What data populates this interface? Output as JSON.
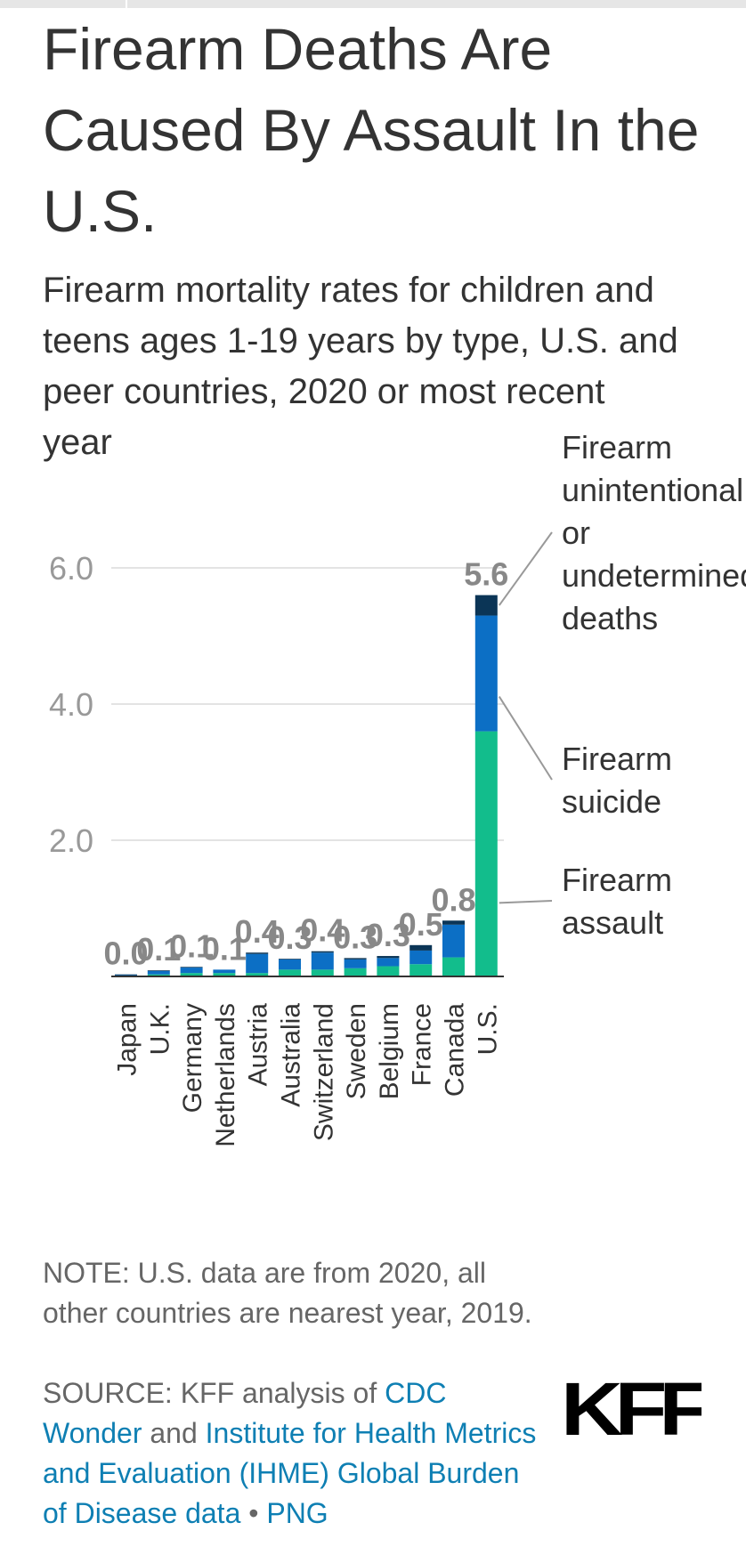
{
  "title": "Firearm Deaths Are Caused By Assault In the U.S.",
  "subtitle": "Firearm mortality rates for children and teens ages 1-19 years by type, U.S. and peer countries, 2020 or most recent year",
  "note": "NOTE: U.S. data are from 2020, all other countries are nearest year, 2019.",
  "source": {
    "prefix": "SOURCE: KFF analysis of ",
    "link1": "CDC Wonder",
    "and": " and ",
    "link2": "Institute for Health Metrics and Evaluation (IHME) Global Burden of Disease data",
    "bullet": " • ",
    "link3": "PNG"
  },
  "logo_text": "KFF",
  "colors": {
    "assault": "#12bd8c",
    "suicide": "#0c6fc5",
    "unintentional": "#0b3556",
    "total_label": "#888888",
    "grid": "#e3e3e3",
    "axis": "#333333",
    "annotation_line": "#999999",
    "link": "#0e7fb3",
    "logo": "#0a74c8"
  },
  "chart_data": {
    "type": "bar",
    "stacked": true,
    "categories": [
      "Japan",
      "U.K.",
      "Germany",
      "Netherlands",
      "Austria",
      "Australia",
      "Switzerland",
      "Sweden",
      "Belgium",
      "France",
      "Canada",
      "U.S."
    ],
    "series": [
      {
        "name": "Firearm assault",
        "values": [
          0.0,
          0.03,
          0.05,
          0.05,
          0.05,
          0.1,
          0.1,
          0.12,
          0.15,
          0.18,
          0.28,
          3.6
        ]
      },
      {
        "name": "Firearm suicide",
        "values": [
          0.02,
          0.05,
          0.08,
          0.05,
          0.28,
          0.15,
          0.25,
          0.13,
          0.12,
          0.2,
          0.48,
          1.7
        ]
      },
      {
        "name": "Firearm unintentional or undetermined deaths",
        "values": [
          0.01,
          0.01,
          0.01,
          0.0,
          0.02,
          0.01,
          0.02,
          0.02,
          0.03,
          0.08,
          0.06,
          0.3
        ]
      }
    ],
    "total_labels": [
      "0.0",
      "0.1",
      "0.1",
      "0.1",
      "0.4",
      "0.3",
      "0.4",
      "0.3",
      "0.3",
      "0.5",
      "0.8",
      "5.6"
    ],
    "yticks": [
      "2.0",
      "4.0",
      "6.0"
    ],
    "ylim": [
      0,
      6.5
    ],
    "grid": true,
    "legend": "right, inline labels pointing to U.S. bar"
  }
}
